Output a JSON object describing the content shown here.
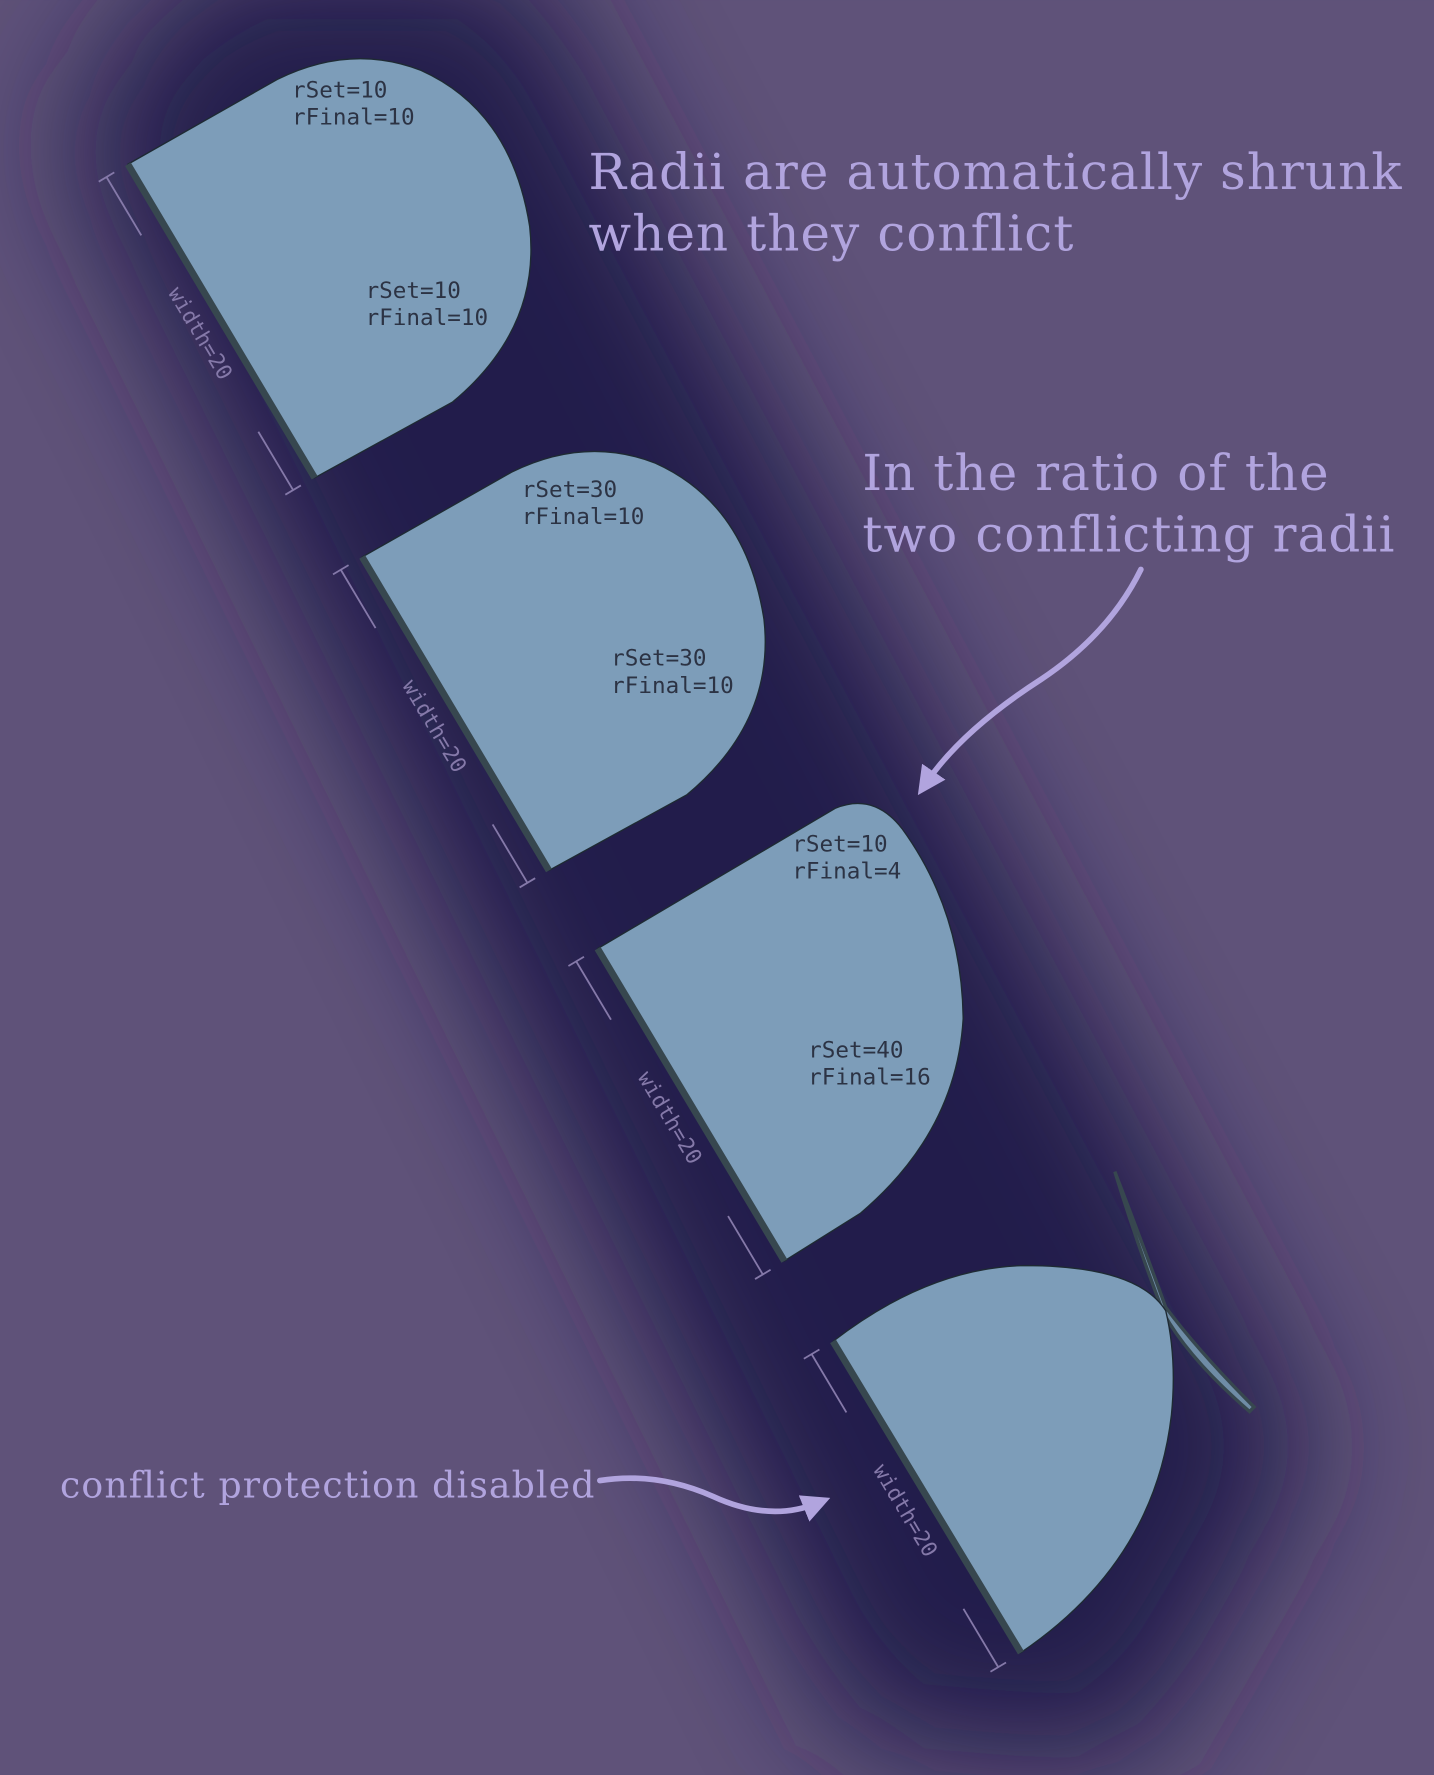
{
  "annotations": {
    "title_line1": "Radii are automatically shrunk",
    "title_line2": "when they conflict",
    "ratio_line1": "In the ratio of the",
    "ratio_line2": "two conflicting radii",
    "disabled": "conflict protection disabled"
  },
  "shapes": [
    {
      "width_label": "width=20",
      "top": {
        "set": "rSet=10",
        "final": "rFinal=10"
      },
      "bottom": {
        "set": "rSet=10",
        "final": "rFinal=10"
      }
    },
    {
      "width_label": "width=20",
      "top": {
        "set": "rSet=30",
        "final": "rFinal=10"
      },
      "bottom": {
        "set": "rSet=30",
        "final": "rFinal=10"
      }
    },
    {
      "width_label": "width=20",
      "top": {
        "set": "rSet=10",
        "final": "rFinal=4"
      },
      "bottom": {
        "set": "rSet=40",
        "final": "rFinal=16"
      }
    },
    {
      "width_label": "width=20"
    }
  ],
  "colors": {
    "background": "#5f5279",
    "shadow_band": "#231a4b",
    "shape_fill": "#7d9db9",
    "shape_edge": "#37474f",
    "annotation": "#b1a4de"
  }
}
